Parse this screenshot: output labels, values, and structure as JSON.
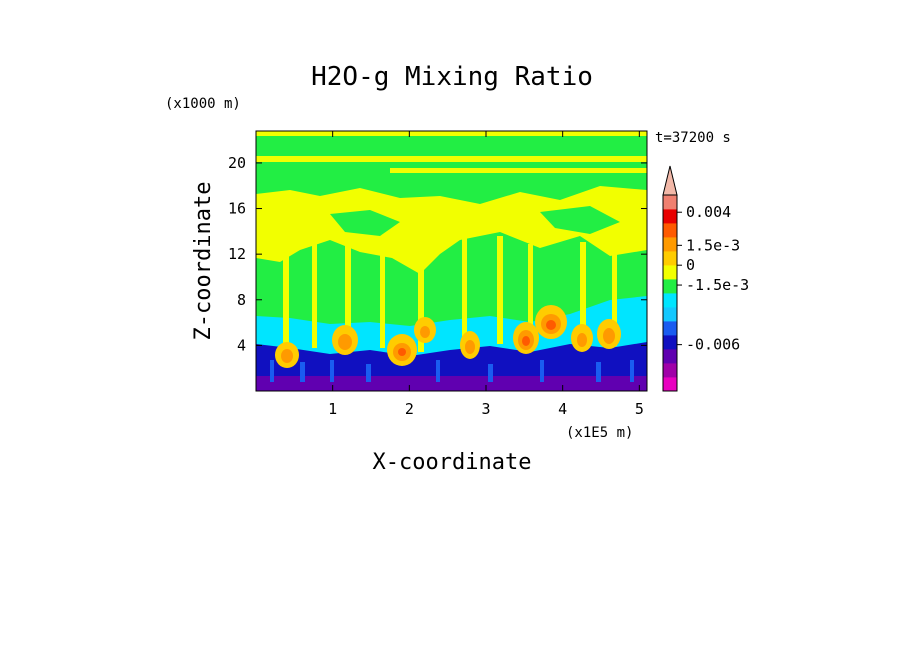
{
  "chart_data": {
    "type": "heatmap",
    "title": "H2O-g Mixing Ratio",
    "xlabel": "X-coordinate",
    "ylabel": "Z-coordinate",
    "x_unit": "(x1E5 m)",
    "y_unit": "(x1000 m)",
    "time_label": "t=37200 s",
    "xlim": [
      0,
      5.1
    ],
    "ylim": [
      0,
      22.8
    ],
    "x_ticks": [
      "1",
      "2",
      "3",
      "4",
      "5"
    ],
    "x_tick_values": [
      1,
      2,
      3,
      4,
      5
    ],
    "y_ticks": [
      "4",
      "8",
      "12",
      "16",
      "20"
    ],
    "y_tick_values": [
      4,
      8,
      12,
      16,
      20
    ],
    "colorbar": {
      "levels": [
        "0.004",
        "1.5e-3",
        "0",
        "-1.5e-3",
        "-0.006"
      ],
      "level_values": [
        0.004,
        0.0015,
        0,
        -0.0015,
        -0.006
      ],
      "extend": "max",
      "colors": [
        "#e800c0",
        "#a000a8",
        "#6000b0",
        "#1010c0",
        "#1a5cf0",
        "#14c8ff",
        "#00e5ff",
        "#22ee44",
        "#f2ff00",
        "#ffcc00",
        "#ff9a00",
        "#ff5a00",
        "#e80000",
        "#f08070",
        "#f2b8a8"
      ]
    },
    "region_colors": {
      "upper": "#f2ff00",
      "upper_band": "#22ee44",
      "middle": "#22ee44",
      "lower_middle": "#00e5ff",
      "boundary_layer": "#1010c0",
      "surface": "#6000b0",
      "cores": "#ff9a00",
      "core_centers": "#ff5a00"
    }
  }
}
